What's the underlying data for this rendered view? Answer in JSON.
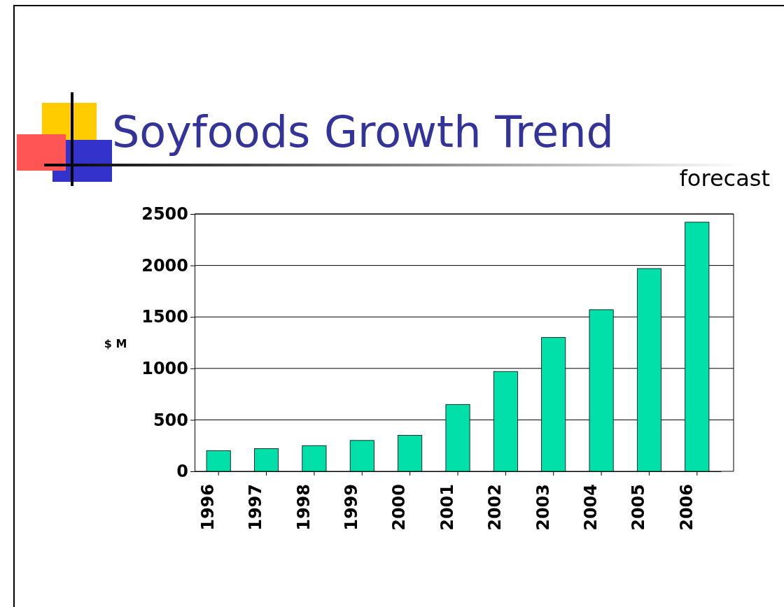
{
  "chart_data": {
    "type": "bar",
    "title": "Soyfoods Growth Trend",
    "ylabel": "$ M",
    "annotations": [
      "forecast"
    ],
    "categories": [
      "1996",
      "1997",
      "1998",
      "1999",
      "2000",
      "2001",
      "2002",
      "2003",
      "2004",
      "2005",
      "2006"
    ],
    "values": [
      200,
      220,
      250,
      300,
      350,
      650,
      970,
      1300,
      1570,
      1970,
      2420
    ],
    "color": "#00e0a8",
    "ylim": [
      0,
      2500
    ],
    "yticks": [
      0,
      500,
      1000,
      1500,
      2000,
      2500
    ],
    "grid": "y"
  }
}
